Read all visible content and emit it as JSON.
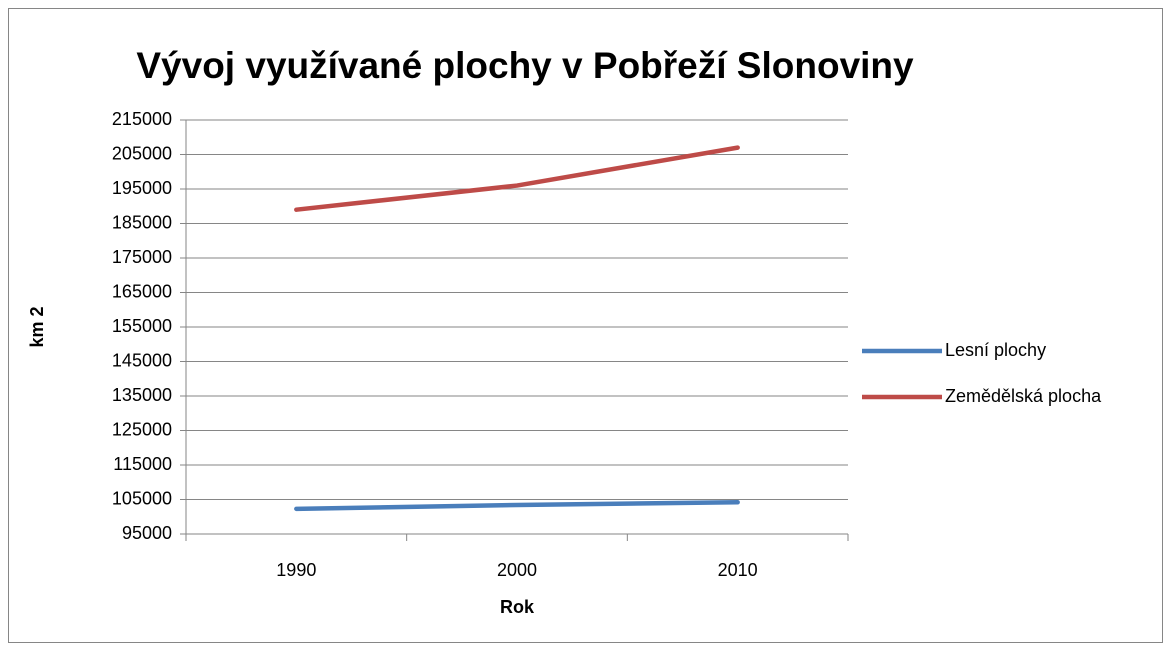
{
  "chart_data": {
    "type": "line",
    "title": "Vývoj využívané plochy v Pobřeží Slonoviny",
    "x_label": "Rok",
    "y_label": "km 2",
    "categories": [
      "1990",
      "2000",
      "2010"
    ],
    "series": [
      {
        "name": "Lesní plochy",
        "color": "#4a7ebb",
        "values": [
          102300,
          103400,
          104200
        ]
      },
      {
        "name": "Zemědělská plocha",
        "color": "#be4b48",
        "values": [
          189000,
          196000,
          207000
        ]
      }
    ],
    "ylim": [
      95000,
      215000
    ],
    "yticks": [
      95000,
      105000,
      115000,
      125000,
      135000,
      145000,
      155000,
      165000,
      175000,
      185000,
      195000,
      205000,
      215000
    ],
    "grid": true,
    "legend": "right"
  }
}
